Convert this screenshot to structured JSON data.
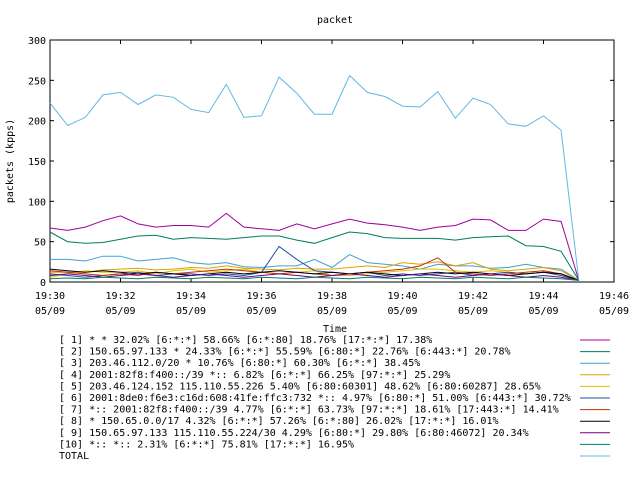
{
  "chart_data": {
    "type": "line",
    "title": "packet",
    "xlabel": "Time",
    "ylabel": "packets (kpps)",
    "ylim": [
      0,
      300
    ],
    "yticks": [
      0,
      50,
      100,
      150,
      200,
      250,
      300
    ],
    "xticks": [
      {
        "t": 0,
        "label1": "19:30",
        "label2": "05/09"
      },
      {
        "t": 2,
        "label1": "19:32",
        "label2": "05/09"
      },
      {
        "t": 4,
        "label1": "19:34",
        "label2": "05/09"
      },
      {
        "t": 6,
        "label1": "19:36",
        "label2": "05/09"
      },
      {
        "t": 8,
        "label1": "19:38",
        "label2": "05/09"
      },
      {
        "t": 10,
        "label1": "19:40",
        "label2": "05/09"
      },
      {
        "t": 12,
        "label1": "19:42",
        "label2": "05/09"
      },
      {
        "t": 14,
        "label1": "19:44",
        "label2": "05/09"
      },
      {
        "t": 16,
        "label1": "19:46",
        "label2": "05/09"
      }
    ],
    "xlim": [
      0,
      16
    ],
    "x": [
      0,
      0.5,
      1,
      1.5,
      2,
      2.5,
      3,
      3.5,
      4,
      4.5,
      5,
      5.5,
      6,
      6.5,
      7,
      7.5,
      8,
      8.5,
      9,
      9.5,
      10,
      10.5,
      11,
      11.5,
      12,
      12.5,
      13,
      13.5,
      14,
      14.5,
      15
    ],
    "grid": false,
    "legend_position": "bottom",
    "series": [
      {
        "name": "[ 1] * * 32.02%  [6:*:*] 58.66% [6:*:80] 18.76% [17:*:*] 17.38%",
        "color": "#a000a0",
        "values": [
          67,
          64,
          68,
          76,
          82,
          72,
          68,
          70,
          70,
          68,
          85,
          68,
          66,
          64,
          72,
          66,
          72,
          78,
          73,
          71,
          68,
          64,
          68,
          70,
          78,
          77,
          64,
          64,
          78,
          75,
          2
        ]
      },
      {
        "name": "[ 2] 150.65.97.133 * 24.33%  [6:*:*] 55.59% [6:80:*] 22.76% [6:443:*] 20.78%",
        "color": "#007d5a",
        "values": [
          62,
          50,
          48,
          49,
          53,
          57,
          58,
          53,
          55,
          54,
          53,
          55,
          57,
          57,
          52,
          48,
          55,
          62,
          60,
          55,
          54,
          54,
          54,
          52,
          55,
          56,
          57,
          45,
          44,
          38,
          2
        ]
      },
      {
        "name": "[ 3] 203.46.112.0/20 * 10.76%  [6:80:*] 60.30% [6:*:*] 38.45%",
        "color": "#40a0d0",
        "values": [
          28,
          28,
          26,
          32,
          32,
          26,
          28,
          30,
          24,
          22,
          24,
          19,
          18,
          20,
          20,
          28,
          18,
          34,
          24,
          22,
          20,
          16,
          22,
          20,
          20,
          17,
          18,
          22,
          18,
          16,
          2
        ]
      },
      {
        "name": "[ 4] 2001:82f8:f400::/39 *:: 6.82%  [6:*:*] 66.25% [97:*:*] 25.29%",
        "color": "#e0a000",
        "values": [
          12,
          12,
          12,
          15,
          16,
          17,
          15,
          16,
          18,
          17,
          20,
          17,
          16,
          15,
          17,
          16,
          16,
          18,
          20,
          18,
          24,
          22,
          25,
          20,
          24,
          16,
          14,
          16,
          18,
          14,
          2
        ]
      },
      {
        "name": "[ 5] 203.46.124.152 115.110.55.226 5.40%  [6:80:60301] 48.62% [6:80:60287] 28.65%",
        "color": "#e0c000",
        "values": [
          6,
          10,
          14,
          12,
          12,
          14,
          10,
          14,
          16,
          12,
          14,
          16,
          12,
          10,
          12,
          14,
          8,
          8,
          10,
          12,
          14,
          16,
          16,
          14,
          12,
          14,
          12,
          10,
          12,
          10,
          2
        ]
      },
      {
        "name": "[ 6] 2001:8de0:f6e3:c16d:608:41fe:ffc3:732 *:: 4.97%  [6:80:*] 51.00% [6:443:*] 30.72%",
        "color": "#2050a0",
        "values": [
          10,
          8,
          6,
          8,
          10,
          12,
          8,
          10,
          10,
          8,
          10,
          8,
          12,
          44,
          28,
          14,
          12,
          10,
          12,
          8,
          10,
          8,
          10,
          12,
          8,
          10,
          12,
          10,
          12,
          8,
          2
        ]
      },
      {
        "name": "[ 7] *:: 2001:82f8:f400::/39 4.77%  [6:*:*] 63.73% [97:*:*] 18.61% [17:443:*] 14.41%",
        "color": "#c03000",
        "values": [
          14,
          12,
          10,
          8,
          10,
          8,
          12,
          10,
          12,
          14,
          16,
          14,
          12,
          10,
          12,
          10,
          8,
          10,
          12,
          14,
          16,
          20,
          30,
          12,
          10,
          8,
          10,
          12,
          14,
          10,
          2
        ]
      },
      {
        "name": "[ 8] * 150.65.0.0/17 4.32%  [6:*:*] 57.26% [6:*:80] 26.02% [17:*:*] 16.01%",
        "color": "#000000",
        "values": [
          16,
          14,
          12,
          14,
          12,
          10,
          12,
          10,
          8,
          10,
          12,
          10,
          12,
          14,
          12,
          10,
          12,
          10,
          12,
          10,
          8,
          10,
          12,
          10,
          12,
          10,
          8,
          10,
          12,
          10,
          2
        ]
      },
      {
        "name": "[ 9] 150.65.97.133 115.110.55.224/30 4.29%  [6:80:*] 29.80% [6:80:46072] 20.34%",
        "color": "#700090",
        "values": [
          8,
          10,
          8,
          6,
          8,
          10,
          8,
          6,
          8,
          10,
          8,
          6,
          8,
          10,
          8,
          6,
          8,
          10,
          8,
          6,
          8,
          10,
          8,
          6,
          8,
          10,
          8,
          6,
          8,
          6,
          2
        ]
      },
      {
        "name": "[10] *:: *:: 2.31%  [6:*:*] 75.81% [17:*:*] 16.95%",
        "color": "#008060",
        "values": [
          4,
          5,
          4,
          6,
          5,
          4,
          6,
          5,
          4,
          6,
          5,
          4,
          6,
          5,
          4,
          6,
          5,
          4,
          6,
          5,
          4,
          6,
          5,
          4,
          6,
          5,
          4,
          6,
          5,
          4,
          2
        ]
      },
      {
        "name": "TOTAL",
        "color": "#60b8e0",
        "values": [
          222,
          194,
          204,
          232,
          235,
          220,
          232,
          229,
          214,
          210,
          245,
          204,
          206,
          254,
          234,
          208,
          208,
          256,
          235,
          230,
          218,
          217,
          236,
          203,
          228,
          220,
          196,
          193,
          206,
          188,
          2
        ]
      }
    ]
  }
}
